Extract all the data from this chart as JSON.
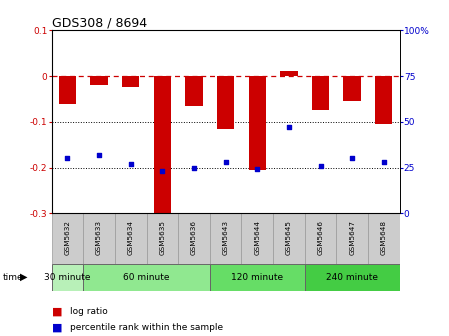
{
  "title": "GDS308 / 8694",
  "samples": [
    "GSM5632",
    "GSM5633",
    "GSM5634",
    "GSM5635",
    "GSM5636",
    "GSM5643",
    "GSM5644",
    "GSM5645",
    "GSM5646",
    "GSM5647",
    "GSM5648"
  ],
  "log_ratio": [
    -0.062,
    -0.02,
    -0.025,
    -0.32,
    -0.065,
    -0.115,
    -0.205,
    0.01,
    -0.075,
    -0.055,
    -0.105
  ],
  "percentile": [
    30,
    32,
    27,
    23,
    25,
    28,
    24,
    47,
    26,
    30,
    28
  ],
  "group_starts": [
    0,
    1,
    5,
    8
  ],
  "group_ends": [
    1,
    5,
    8,
    11
  ],
  "group_labels": [
    "30 minute",
    "60 minute",
    "120 minute",
    "240 minute"
  ],
  "group_colors": [
    "#b8f0b8",
    "#90e890",
    "#66dd66",
    "#44cc44"
  ],
  "ylim_left": [
    -0.3,
    0.1
  ],
  "ylim_right": [
    0,
    100
  ],
  "bar_color": "#cc0000",
  "dot_color": "#0000cc",
  "zero_line_color": "#cc0000",
  "grid_color": "#000000",
  "bg_plot": "#ffffff",
  "bg_xtick": "#cccccc",
  "left_yticks": [
    -0.3,
    -0.2,
    -0.1,
    0.0,
    0.1
  ],
  "left_yticklabels": [
    "-0.3",
    "-0.2",
    "-0.1",
    "0",
    "0.1"
  ],
  "right_yticks": [
    0,
    25,
    50,
    75,
    100
  ],
  "right_yticklabels": [
    "0",
    "25",
    "50",
    "75",
    "100%"
  ],
  "bar_width": 0.55,
  "dot_size": 12
}
